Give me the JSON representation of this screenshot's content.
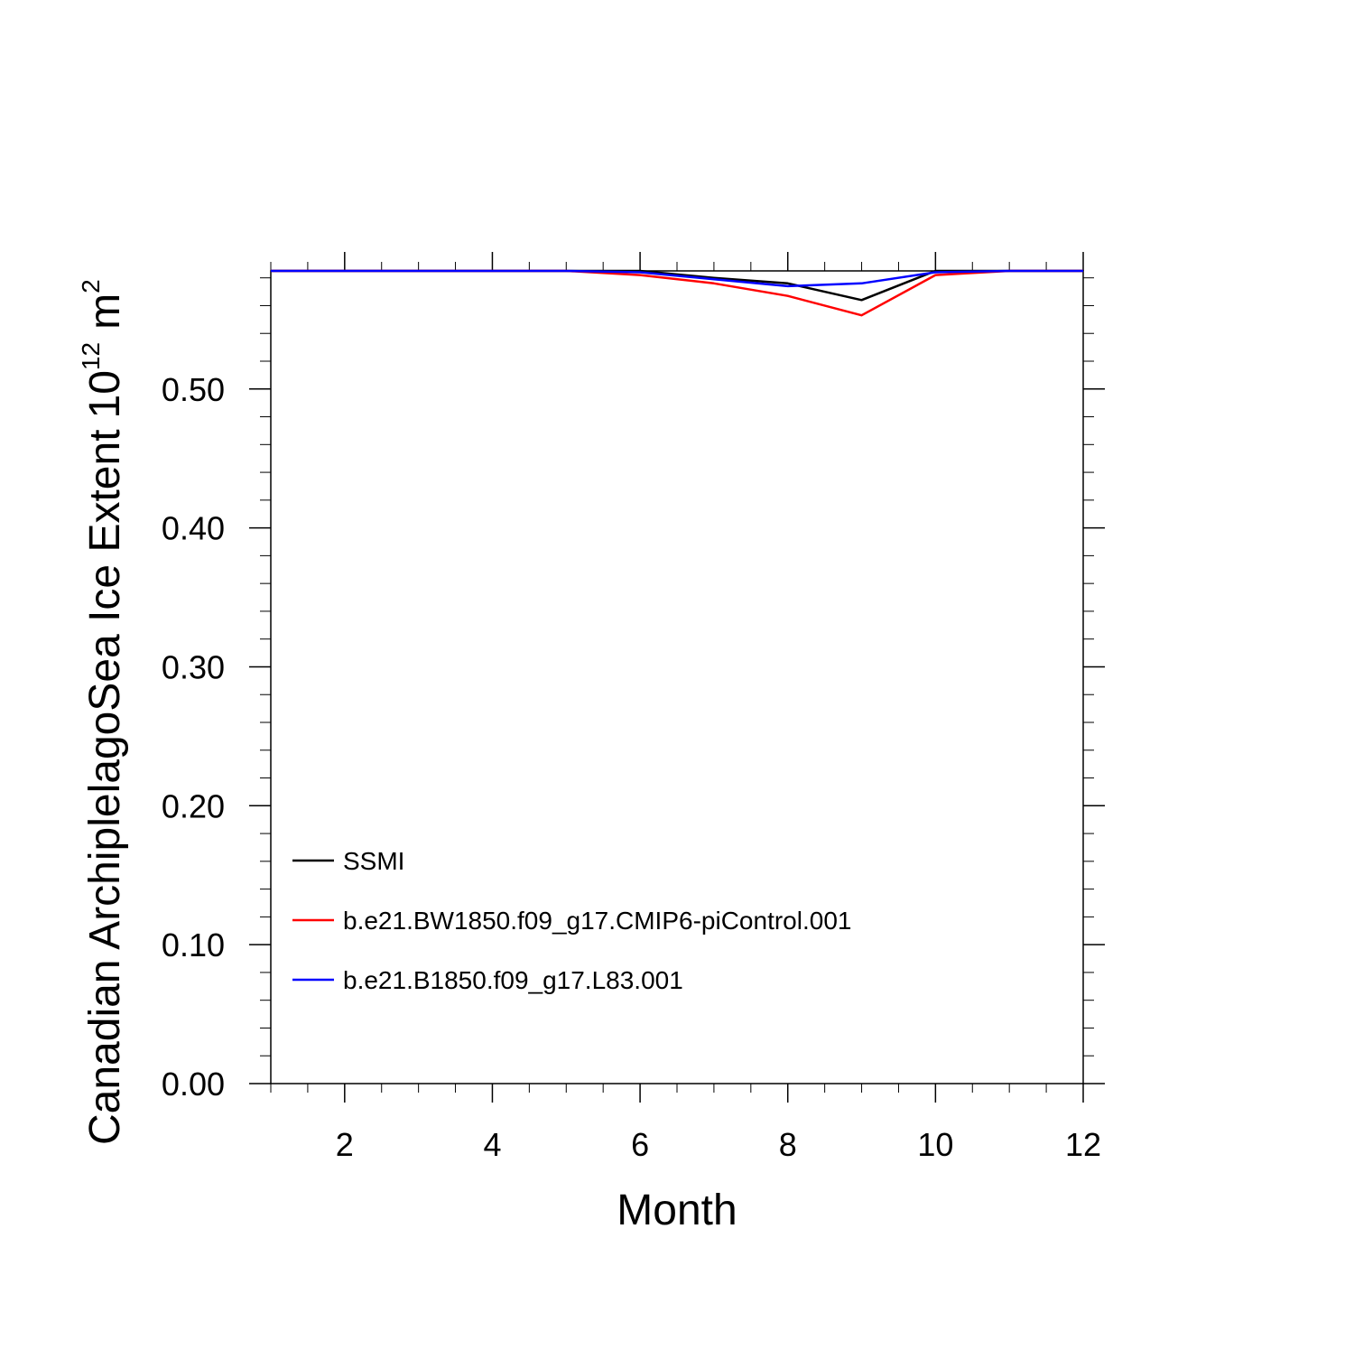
{
  "chart_data": {
    "type": "line",
    "title": "",
    "xlabel": "Month",
    "ylabel": "Canadian ArchiplelagoSea Ice Extent",
    "ylabel_unit": {
      "base": "10",
      "base_exponent": "12",
      "unit": "m",
      "unit_exponent": "2"
    },
    "xlim": [
      1,
      12
    ],
    "ylim": [
      0,
      0.585
    ],
    "x_ticks": [
      2,
      4,
      6,
      8,
      10,
      12
    ],
    "x_tick_labels": [
      "2",
      "4",
      "6",
      "8",
      "10",
      "12"
    ],
    "y_ticks": [
      0,
      0.1,
      0.2,
      0.3,
      0.4,
      0.5
    ],
    "y_tick_labels": [
      "0.00",
      "0.10",
      "0.20",
      "0.30",
      "0.40",
      "0.50"
    ],
    "grid": false,
    "legend_position": "bottom-left",
    "x": [
      1,
      2,
      3,
      4,
      5,
      6,
      7,
      8,
      9,
      10,
      11,
      12
    ],
    "series": [
      {
        "name": "SSMI",
        "color": "#000000",
        "values": [
          0.585,
          0.585,
          0.585,
          0.585,
          0.585,
          0.585,
          0.58,
          0.576,
          0.564,
          0.585,
          0.585,
          0.585
        ]
      },
      {
        "name": "b.e21.BW1850.f09_g17.CMIP6-piControl.001",
        "color": "#ff0000",
        "values": [
          0.585,
          0.585,
          0.585,
          0.585,
          0.585,
          0.582,
          0.576,
          0.567,
          0.553,
          0.582,
          0.585,
          0.585
        ]
      },
      {
        "name": "b.e21.B1850.f09_g17.L83.001",
        "color": "#0000ff",
        "values": [
          0.585,
          0.585,
          0.585,
          0.585,
          0.585,
          0.584,
          0.579,
          0.574,
          0.576,
          0.584,
          0.585,
          0.585
        ]
      }
    ]
  }
}
